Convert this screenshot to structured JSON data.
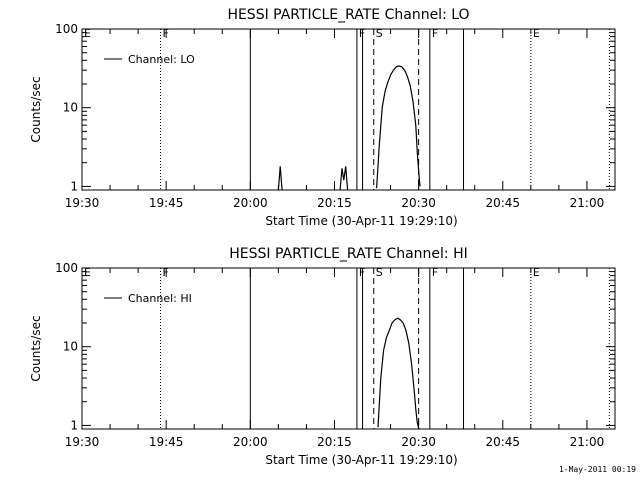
{
  "footer_timestamp": "1-May-2011 00:19",
  "chart_data": [
    {
      "type": "line",
      "title": "HESSI PARTICLE_RATE Channel: LO",
      "xlabel": "Start Time (30-Apr-11 19:29:10)",
      "ylabel": "Counts/sec",
      "y_scale": "log",
      "ylim": [
        0.9,
        100
      ],
      "xlim_minutes_after_1930": [
        0,
        95
      ],
      "x_tick_labels": [
        "19:30",
        "19:45",
        "20:00",
        "20:15",
        "20:30",
        "20:45",
        "21:00"
      ],
      "y_tick_labels": [
        "1",
        "10",
        "100"
      ],
      "legend": {
        "label": "Channel: LO",
        "placement": "top-left"
      },
      "markers": [
        {
          "time": "19:30",
          "label": "E",
          "style": "none"
        },
        {
          "time": "19:44",
          "label": "F",
          "style": "dotted"
        },
        {
          "time": "20:00",
          "label": "",
          "style": "solid"
        },
        {
          "time": "20:19",
          "label": "F",
          "style": "solid"
        },
        {
          "time": "20:20",
          "label": "",
          "style": "solid"
        },
        {
          "time": "20:22",
          "label": "S",
          "style": "dashed"
        },
        {
          "time": "20:30",
          "label": "",
          "style": "dashed"
        },
        {
          "time": "20:32",
          "label": "F",
          "style": "solid"
        },
        {
          "time": "20:38",
          "label": "",
          "style": "solid"
        },
        {
          "time": "20:50",
          "label": "E",
          "style": "dotted"
        },
        {
          "time": "21:04",
          "label": "",
          "style": "dotted"
        }
      ],
      "series": [
        {
          "segments": [
            {
              "x": [
                "20:05:00",
                "20:05:20",
                "20:05:40"
              ],
              "y": [
                0.9,
                1.8,
                0.9
              ]
            },
            {
              "x": [
                "20:16:00",
                "20:16:20",
                "20:16:40",
                "20:17:00",
                "20:17:20"
              ],
              "y": [
                0.9,
                1.7,
                1.2,
                1.8,
                0.9
              ]
            },
            {
              "x": [
                "20:22:30",
                "20:23:00",
                "20:23:30",
                "20:24:00",
                "20:24:30",
                "20:25:00",
                "20:25:30",
                "20:26:00",
                "20:26:30",
                "20:27:00",
                "20:27:30",
                "20:28:00",
                "20:28:30",
                "20:29:00",
                "20:29:30",
                "20:29:45",
                "20:30:00",
                "20:30:15"
              ],
              "y": [
                0.95,
                3.5,
                10,
                16,
                21,
                26,
                30,
                33,
                34,
                33,
                30,
                25,
                19,
                12,
                6,
                2.8,
                1.6,
                1.0
              ]
            }
          ]
        }
      ]
    },
    {
      "type": "line",
      "title": "HESSI PARTICLE_RATE Channel: HI",
      "xlabel": "Start Time (30-Apr-11 19:29:10)",
      "ylabel": "Counts/sec",
      "y_scale": "log",
      "ylim": [
        0.9,
        100
      ],
      "xlim_minutes_after_1930": [
        0,
        95
      ],
      "x_tick_labels": [
        "19:30",
        "19:45",
        "20:00",
        "20:15",
        "20:30",
        "20:45",
        "21:00"
      ],
      "y_tick_labels": [
        "1",
        "10",
        "100"
      ],
      "legend": {
        "label": "Channel: HI",
        "placement": "top-left"
      },
      "markers": [
        {
          "time": "19:30",
          "label": "E",
          "style": "none"
        },
        {
          "time": "19:44",
          "label": "F",
          "style": "dotted"
        },
        {
          "time": "20:00",
          "label": "",
          "style": "solid"
        },
        {
          "time": "20:19",
          "label": "F",
          "style": "solid"
        },
        {
          "time": "20:20",
          "label": "",
          "style": "solid"
        },
        {
          "time": "20:22",
          "label": "S",
          "style": "dashed"
        },
        {
          "time": "20:30",
          "label": "",
          "style": "dashed"
        },
        {
          "time": "20:32",
          "label": "F",
          "style": "solid"
        },
        {
          "time": "20:38",
          "label": "",
          "style": "solid"
        },
        {
          "time": "20:50",
          "label": "E",
          "style": "dotted"
        },
        {
          "time": "21:04",
          "label": "",
          "style": "dotted"
        }
      ],
      "series": [
        {
          "segments": [
            {
              "x": [
                "20:22:45",
                "20:23:15",
                "20:23:45",
                "20:24:15",
                "20:24:45",
                "20:25:15",
                "20:25:45",
                "20:26:15",
                "20:26:45",
                "20:27:15",
                "20:27:45",
                "20:28:15",
                "20:28:45",
                "20:29:15",
                "20:29:30",
                "20:29:45",
                "20:30:00"
              ],
              "y": [
                0.95,
                4,
                9,
                13,
                16,
                20,
                22,
                23,
                22,
                20,
                16,
                11,
                6,
                2.6,
                1.6,
                1.1,
                0.92
              ]
            }
          ]
        }
      ]
    }
  ]
}
